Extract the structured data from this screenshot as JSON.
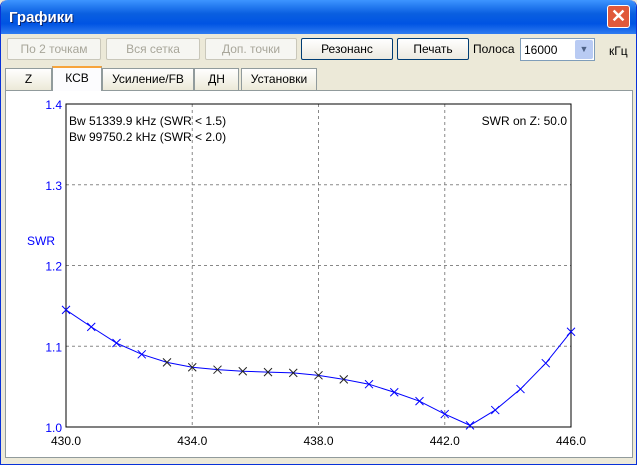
{
  "window": {
    "title": "Графики"
  },
  "toolbar": {
    "btn_two_points": "По 2 точкам",
    "btn_all_grid": "Вся сетка",
    "btn_extra_points": "Доп. точки",
    "btn_resonance": "Резонанс",
    "btn_print": "Печать",
    "band_label": "Полоса",
    "band_value": "16000",
    "band_unit": "кГц"
  },
  "tabs": [
    {
      "label": "Z"
    },
    {
      "label": "КСВ",
      "active": true
    },
    {
      "label": "Усиление/FB"
    },
    {
      "label": "ДН"
    },
    {
      "label": "Установки"
    }
  ],
  "chart_data": {
    "type": "line",
    "ylabel": "SWR",
    "xlabel": "",
    "annotations": [
      "Bw 51339.9 kHz (SWR < 1.5)",
      "Bw 99750.2 kHz (SWR < 2.0)",
      "SWR on Z: 50.0"
    ],
    "xlim": [
      430,
      446
    ],
    "ylim": [
      1.0,
      1.4
    ],
    "xticks": [
      "430.0",
      "434.0",
      "438.0",
      "442.0",
      "446.0"
    ],
    "yticks": [
      "1.0",
      "1.1",
      "1.2",
      "1.3",
      "1.4"
    ],
    "grid": true,
    "color": "#0000ff",
    "x": [
      430,
      430.8,
      431.6,
      432.4,
      433.2,
      434,
      434.8,
      435.6,
      436.4,
      437.2,
      438,
      438.8,
      439.6,
      440.4,
      441.2,
      442,
      442.8,
      443.6,
      444.4,
      445.2,
      446
    ],
    "y": [
      1.145,
      1.124,
      1.104,
      1.09,
      1.08,
      1.074,
      1.071,
      1.069,
      1.068,
      1.067,
      1.064,
      1.059,
      1.053,
      1.043,
      1.032,
      1.016,
      1.002,
      1.021,
      1.047,
      1.079,
      1.118
    ]
  }
}
